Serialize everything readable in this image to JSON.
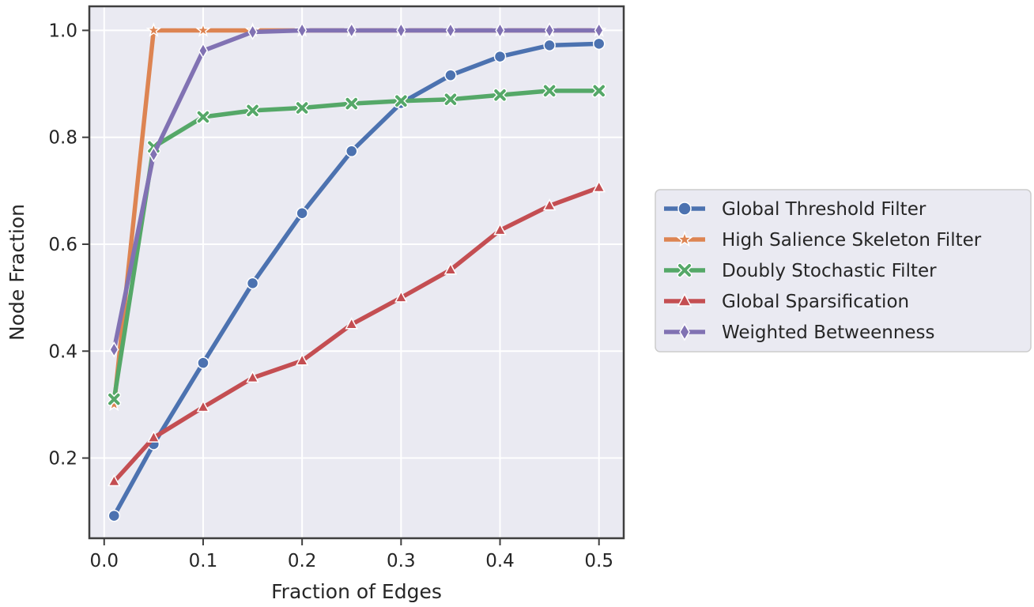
{
  "chart_data": {
    "type": "line",
    "xlabel": "Fraction of Edges",
    "ylabel": "Node Fraction",
    "xlim": [
      -0.015,
      0.525
    ],
    "ylim": [
      0.05,
      1.045
    ],
    "xticks": [
      0.0,
      0.1,
      0.2,
      0.3,
      0.4,
      0.5
    ],
    "xtick_labels": [
      "0.0",
      "0.1",
      "0.2",
      "0.3",
      "0.4",
      "0.5"
    ],
    "yticks": [
      0.2,
      0.4,
      0.6,
      0.8,
      1.0
    ],
    "ytick_labels": [
      "0.2",
      "0.4",
      "0.6",
      "0.8",
      "1.0"
    ],
    "grid": true,
    "legend_position": "right, outside plot",
    "x": [
      0.01,
      0.05,
      0.1,
      0.15,
      0.2,
      0.25,
      0.3,
      0.35,
      0.4,
      0.45,
      0.5
    ],
    "series": [
      {
        "name": "Global Threshold Filter",
        "color": "#4c72b0",
        "marker": "circle",
        "values": [
          0.092,
          0.226,
          0.378,
          0.527,
          0.658,
          0.774,
          0.864,
          0.916,
          0.951,
          0.972,
          0.975
        ]
      },
      {
        "name": "High Salience Skeleton Filter",
        "color": "#dd8452",
        "marker": "star",
        "values": [
          0.3,
          1.0,
          1.0,
          1.0,
          1.0,
          1.0,
          1.0,
          1.0,
          1.0,
          1.0,
          1.0
        ]
      },
      {
        "name": "Doubly Stochastic Filter",
        "color": "#55a868",
        "marker": "x",
        "values": [
          0.31,
          0.782,
          0.838,
          0.85,
          0.855,
          0.863,
          0.868,
          0.871,
          0.879,
          0.887,
          0.887
        ]
      },
      {
        "name": "Global Sparsification",
        "color": "#c44e52",
        "marker": "triangle",
        "values": [
          0.156,
          0.238,
          0.295,
          0.35,
          0.382,
          0.45,
          0.5,
          0.552,
          0.626,
          0.672,
          0.706
        ]
      },
      {
        "name": "Weighted Betweenness",
        "color": "#8172b3",
        "marker": "diamond",
        "values": [
          0.403,
          0.768,
          0.962,
          0.997,
          1.0,
          1.0,
          1.0,
          1.0,
          1.0,
          1.0,
          1.0
        ]
      }
    ]
  }
}
